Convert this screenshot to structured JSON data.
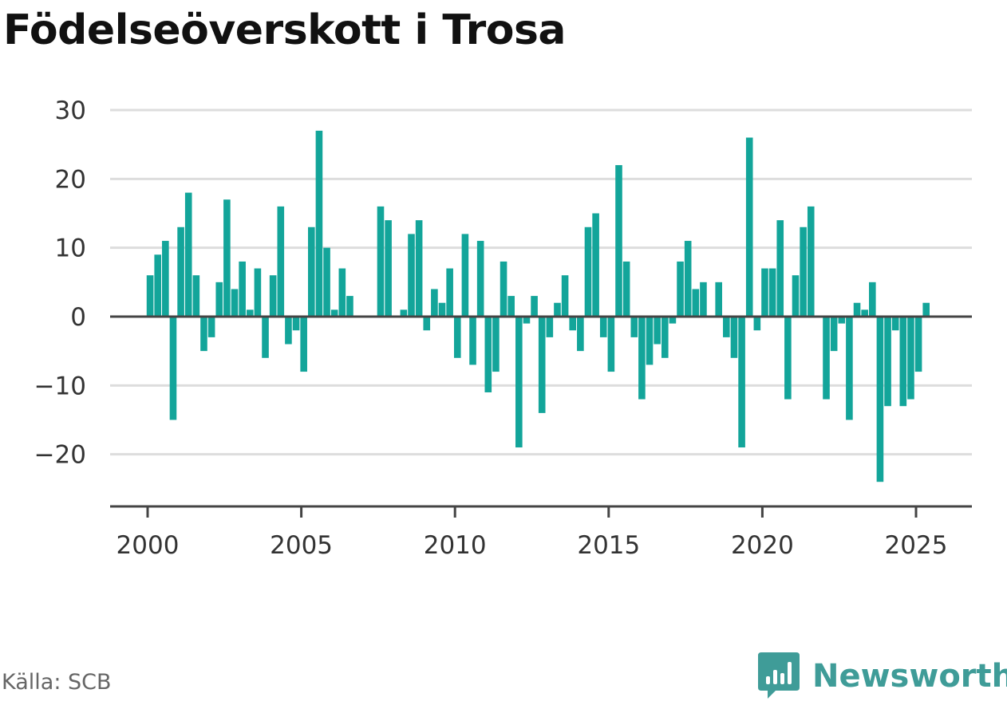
{
  "title": "Födelseöverskott i Trosa",
  "source": "Källa: SCB",
  "brand": {
    "name": "Newsworthy",
    "logo_icon": "bar-chart-speech-bubble-icon"
  },
  "colors": {
    "bar": "#13a59a",
    "zero_line": "#444444",
    "grid": "#dddddd",
    "axis": "#444444",
    "brand": "#3f9c98"
  },
  "chart_data": {
    "type": "bar",
    "title": "Födelseöverskott i Trosa",
    "xlabel": "",
    "ylabel": "",
    "grid": true,
    "x_ticks": [
      "2000",
      "2005",
      "2010",
      "2015",
      "2020",
      "2025"
    ],
    "y_ticks": [
      "30",
      "20",
      "10",
      "0",
      "−10",
      "−20"
    ],
    "y_tick_values": [
      30,
      20,
      10,
      0,
      -10,
      -20
    ],
    "ylim": [
      -27.5,
      30
    ],
    "xlim": [
      1998.75,
      2026.8
    ],
    "frequency": "monthly",
    "series": [
      {
        "x": [
          2000.08,
          2000.33,
          2000.58,
          2000.83,
          2001.08,
          2001.33,
          2001.58,
          2001.83,
          2002.08,
          2002.33,
          2002.58,
          2002.83,
          2003.08,
          2003.33,
          2003.58,
          2003.83,
          2004.08,
          2004.33,
          2004.58,
          2004.83,
          2005.08,
          2005.33,
          2005.58,
          2005.83,
          2006.08,
          2006.33,
          2006.58,
          2007.58,
          2007.83,
          2008.33,
          2008.58,
          2008.83,
          2009.08,
          2009.33,
          2009.58,
          2009.83,
          2010.08,
          2010.33,
          2010.58,
          2010.83,
          2011.08,
          2011.33,
          2011.58,
          2011.83,
          2012.08,
          2012.33,
          2012.58,
          2012.83,
          2013.08,
          2013.33,
          2013.58,
          2013.83,
          2014.08,
          2014.33,
          2014.58,
          2014.83,
          2015.08,
          2015.33,
          2015.58,
          2015.83,
          2016.08,
          2016.33,
          2016.58,
          2016.83,
          2017.08,
          2017.33,
          2017.58,
          2017.83,
          2018.08,
          2018.58,
          2018.83,
          2019.08,
          2019.33,
          2019.58,
          2019.83,
          2020.08,
          2020.33,
          2020.58,
          2020.83,
          2021.08,
          2021.33,
          2021.58,
          2022.08,
          2022.33,
          2022.58,
          2022.83,
          2023.08,
          2023.33,
          2023.58,
          2023.83,
          2024.08,
          2024.33,
          2024.58,
          2024.83,
          2025.08,
          2025.33
        ],
        "values": [
          6,
          9,
          11,
          -15,
          13,
          18,
          6,
          -5,
          -3,
          5,
          17,
          4,
          8,
          1,
          7,
          -6,
          6,
          16,
          -4,
          -2,
          -8,
          13,
          27,
          10,
          1,
          7,
          3,
          16,
          14,
          1,
          12,
          14,
          -2,
          4,
          2,
          7,
          -6,
          12,
          -7,
          11,
          -11,
          -8,
          8,
          3,
          -19,
          -1,
          3,
          -14,
          -3,
          2,
          6,
          -2,
          -5,
          13,
          15,
          -3,
          -8,
          22,
          8,
          -3,
          -12,
          -7,
          -4,
          -6,
          -1,
          8,
          11,
          4,
          5,
          5,
          -3,
          -6,
          -19,
          26,
          -2,
          7,
          7,
          14,
          -12,
          6,
          13,
          16,
          -12,
          -5,
          -1,
          -15,
          2,
          1,
          5,
          -24,
          -13,
          -2,
          -13,
          -12,
          -8,
          2
        ]
      }
    ]
  }
}
